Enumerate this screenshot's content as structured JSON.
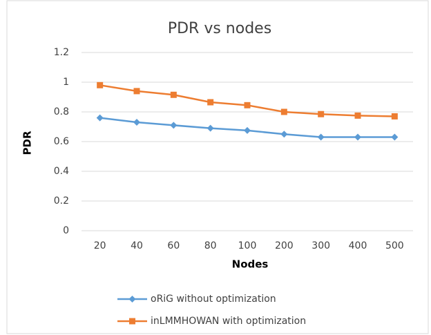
{
  "chart_data": {
    "type": "line",
    "title": "PDR vs nodes",
    "x_label": "Nodes",
    "y_label": "PDR",
    "categories": [
      "20",
      "40",
      "60",
      "80",
      "100",
      "200",
      "300",
      "400",
      "500"
    ],
    "series": [
      {
        "name": "oRiG without optimization",
        "color": "#5b9bd5",
        "marker": "diamond",
        "values": [
          0.76,
          0.73,
          0.71,
          0.69,
          0.675,
          0.65,
          0.63,
          0.63,
          0.63
        ]
      },
      {
        "name": "inLMMHOWAN with optimization",
        "color": "#ed7d31",
        "marker": "square",
        "values": [
          0.98,
          0.94,
          0.915,
          0.865,
          0.845,
          0.8,
          0.785,
          0.775,
          0.77
        ]
      }
    ],
    "ylim": [
      0,
      1.2
    ],
    "yticks": [
      0,
      0.2,
      0.4,
      0.6,
      0.8,
      1,
      1.2
    ],
    "grid": true,
    "legend": "bottom"
  }
}
